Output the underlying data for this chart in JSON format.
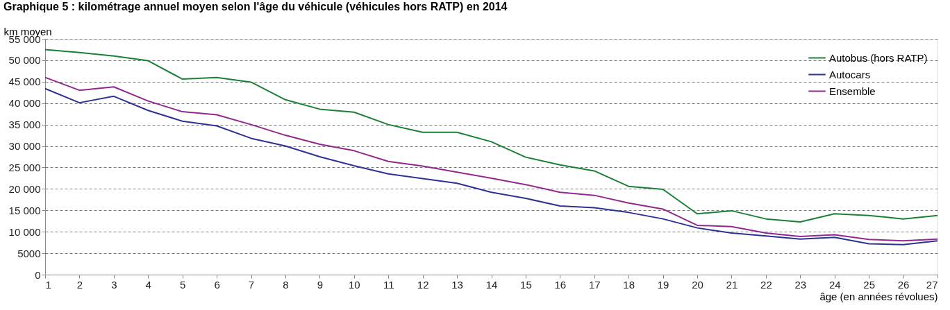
{
  "chart_data": {
    "type": "line",
    "title": "Graphique 5 : kilométrage annuel moyen selon l'âge du véhicule (véhicules hors RATP) en 2014",
    "ylabel": "km moyen",
    "xlabel": "âge (en années révolues)",
    "x": [
      1,
      2,
      3,
      4,
      5,
      6,
      7,
      8,
      9,
      10,
      11,
      12,
      13,
      14,
      15,
      16,
      17,
      18,
      19,
      20,
      21,
      22,
      23,
      24,
      25,
      26,
      27
    ],
    "series": [
      {
        "name": "Autobus (hors RATP)",
        "color": "#1a7f37",
        "values": [
          52500,
          51800,
          51000,
          49900,
          45600,
          46000,
          44900,
          40800,
          38600,
          37900,
          35000,
          33200,
          33200,
          31000,
          27400,
          25600,
          24200,
          20600,
          19900,
          14200,
          14900,
          13000,
          12300,
          14200,
          13800,
          13000,
          13800
        ]
      },
      {
        "name": "Autocars",
        "color": "#2e3192",
        "values": [
          43400,
          40100,
          41600,
          38300,
          35800,
          34700,
          31800,
          30000,
          27500,
          25400,
          23500,
          22400,
          21300,
          19200,
          17800,
          16000,
          15600,
          14500,
          13000,
          10900,
          9700,
          9000,
          8300,
          8700,
          7200,
          7000,
          7900
        ]
      },
      {
        "name": "Ensemble",
        "color": "#93278f",
        "values": [
          46000,
          43000,
          43800,
          40500,
          38000,
          37300,
          35000,
          32500,
          30400,
          28900,
          26400,
          25300,
          23900,
          22500,
          21000,
          19200,
          18500,
          16700,
          15300,
          11500,
          11200,
          9700,
          8900,
          9300,
          8200,
          7900,
          8300
        ]
      }
    ],
    "xlim": [
      1,
      27
    ],
    "xticks": [
      1,
      2,
      3,
      4,
      5,
      6,
      7,
      8,
      9,
      10,
      11,
      12,
      13,
      14,
      15,
      16,
      17,
      18,
      19,
      20,
      21,
      22,
      23,
      24,
      25,
      26,
      27
    ],
    "ylim": [
      0,
      55000
    ],
    "yticks": [
      0,
      5000,
      {
        "value": 10000,
        "label": "10 000"
      },
      {
        "value": 15000,
        "label": "15 000"
      },
      {
        "value": 20000,
        "label": "20 000"
      },
      {
        "value": 25000,
        "label": "25 000"
      },
      {
        "value": 30000,
        "label": "30 000"
      },
      {
        "value": 35000,
        "label": "35 000"
      },
      {
        "value": 40000,
        "label": "40 000"
      },
      {
        "value": 45000,
        "label": "45 000"
      },
      {
        "value": 50000,
        "label": "50 000"
      },
      {
        "value": 55000,
        "label": "55 000"
      }
    ],
    "grid": "y",
    "legend": "top right",
    "marker": "none",
    "line_style": "solid"
  }
}
